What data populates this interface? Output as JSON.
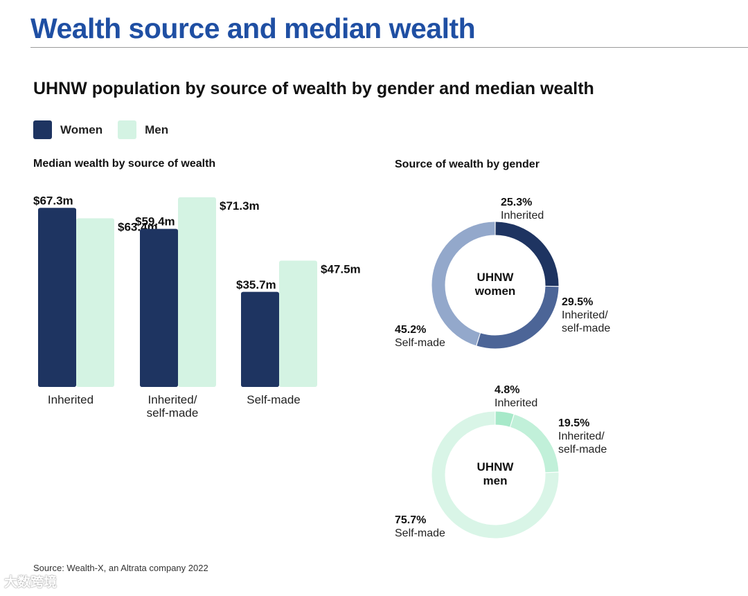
{
  "header": {
    "title": "Wealth source and median wealth",
    "subtitle": "UHNW population by source of wealth by gender and median wealth"
  },
  "legend": [
    {
      "label": "Women",
      "color": "#1e3461"
    },
    {
      "label": "Men",
      "color": "#d4f3e3"
    }
  ],
  "chart_data": [
    {
      "type": "bar",
      "title": "Median wealth by source of wealth",
      "categories": [
        "Inherited",
        "Inherited/\nself-made",
        "Self-made"
      ],
      "series": [
        {
          "name": "Women",
          "color": "#1e3461",
          "values": [
            67.3,
            59.4,
            35.7
          ],
          "labels": [
            "$67.3m",
            "$59.4m",
            "$35.7m"
          ]
        },
        {
          "name": "Men",
          "color": "#d4f3e3",
          "values": [
            63.4,
            71.3,
            47.5
          ],
          "labels": [
            "$63.4m",
            "$71.3m",
            "$47.5m"
          ]
        }
      ],
      "ylim": [
        0,
        71.3
      ],
      "grid": false
    },
    {
      "type": "pie",
      "title": "Source of wealth by gender",
      "donuts": [
        {
          "center_label": [
            "UHNW",
            "women"
          ],
          "slices": [
            {
              "label": "Inherited",
              "pct_label": "25.3%",
              "value": 25.3,
              "color": "#1e3461"
            },
            {
              "label": "Inherited/\nself-made",
              "pct_label": "29.5%",
              "value": 29.5,
              "color": "#4c6597"
            },
            {
              "label": "Self-made",
              "pct_label": "45.2%",
              "value": 45.2,
              "color": "#93a8cb"
            }
          ]
        },
        {
          "center_label": [
            "UHNW",
            "men"
          ],
          "slices": [
            {
              "label": "Inherited",
              "pct_label": "4.8%",
              "value": 4.8,
              "color": "#a7e9c9"
            },
            {
              "label": "Inherited/\nself-made",
              "pct_label": "19.5%",
              "value": 19.5,
              "color": "#c1f0d9"
            },
            {
              "label": "Self-made",
              "pct_label": "75.7%",
              "value": 75.7,
              "color": "#d9f5e7"
            }
          ]
        }
      ]
    }
  ],
  "footer": {
    "source": "Source: Wealth-X, an Altrata company 2022",
    "watermark": "大数跨境"
  }
}
